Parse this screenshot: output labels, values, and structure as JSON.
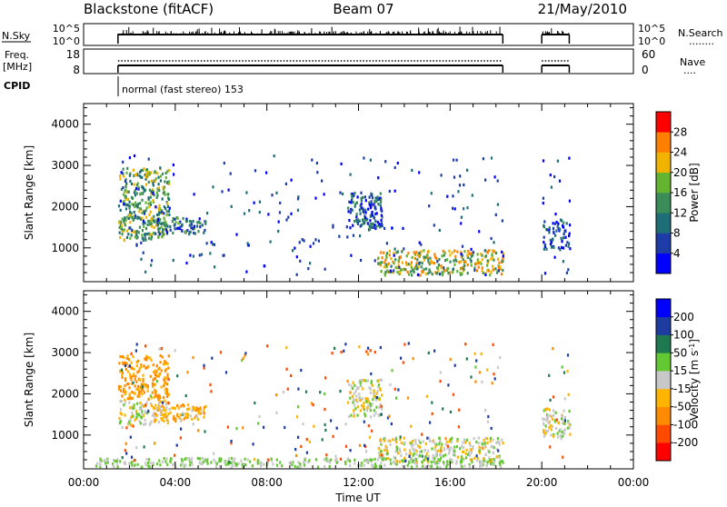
{
  "header": {
    "station": "Blackstone (fitACF)",
    "beam": "Beam 07",
    "date": "21/May/2010"
  },
  "status_panels": {
    "nsky": {
      "left_label": "N.Sky",
      "left_ticks": [
        "10^5",
        "10^0"
      ],
      "right_ticks": [
        "10^5",
        "10^0"
      ],
      "right_label": "N.Search",
      "right_label_line": "........"
    },
    "freq": {
      "left_label_1": "Freq.",
      "left_label_2": "[MHz]",
      "left_ticks": [
        "18",
        "8"
      ],
      "right_ticks": [
        "60",
        "0"
      ],
      "right_label": "Nave",
      "right_label_line": "...."
    },
    "cpid": {
      "label": "CPID",
      "text": "normal (fast stereo) 153"
    }
  },
  "chart_data": [
    {
      "type": "heatmap",
      "title": "",
      "quantity": "Power",
      "ylabel": "Slant Range [km]",
      "xlabel": "",
      "xlim": [
        0,
        24
      ],
      "ylim": [
        180,
        4500
      ],
      "yticks": [
        1000,
        2000,
        3000,
        4000
      ],
      "ytick_labels": [
        "1000",
        "2000",
        "3000",
        "4000"
      ],
      "colorbar": {
        "label": "Power [dB]",
        "range": [
          0,
          32
        ],
        "ticks": [
          4,
          8,
          12,
          16,
          20,
          24,
          28
        ],
        "tick_labels": [
          "4",
          "8",
          "12",
          "16",
          "20",
          "24",
          "28"
        ],
        "colors": [
          "#0000ff",
          "#1e3ca8",
          "#1e6e78",
          "#3c8c5a",
          "#64b432",
          "#f0b400",
          "#ff8000",
          "#ff0000"
        ]
      },
      "data_gaps_ut": [
        [
          18.3,
          20.0
        ]
      ],
      "scatter_regions": [
        {
          "ut": [
            1.5,
            3.7
          ],
          "range_km": [
            1150,
            2900
          ],
          "dominant_power_db": 16
        },
        {
          "ut": [
            3.0,
            5.3
          ],
          "range_km": [
            1300,
            1700
          ],
          "dominant_power_db": 10
        },
        {
          "ut": [
            11.5,
            13.0
          ],
          "range_km": [
            1400,
            2300
          ],
          "dominant_power_db": 8
        },
        {
          "ut": [
            12.8,
            18.3
          ],
          "range_km": [
            300,
            900
          ],
          "dominant_power_db": 20
        },
        {
          "ut": [
            20.0,
            21.2
          ],
          "range_km": [
            900,
            1600
          ],
          "dominant_power_db": 6
        }
      ]
    },
    {
      "type": "heatmap",
      "title": "",
      "quantity": "Velocity",
      "ylabel": "Slant Range [km]",
      "xlabel": "Time UT",
      "xlim": [
        0,
        24
      ],
      "ylim": [
        180,
        4500
      ],
      "yticks": [
        1000,
        2000,
        3000,
        4000
      ],
      "ytick_labels": [
        "1000",
        "2000",
        "3000",
        "4000"
      ],
      "xticks": [
        0,
        4,
        8,
        12,
        16,
        20,
        24
      ],
      "xtick_labels": [
        "00:00",
        "04:00",
        "08:00",
        "12:00",
        "16:00",
        "20:00",
        "00:00"
      ],
      "colorbar": {
        "label": "Velocity [m s^-1]",
        "ticks": [
          -200,
          -100,
          -50,
          -15,
          15,
          50,
          100,
          200
        ],
        "tick_labels": [
          "-200",
          "-100",
          "-50",
          "-15",
          "15",
          "50",
          "100",
          "200"
        ],
        "colors": [
          "#ff0000",
          "#ff4a00",
          "#ff8c00",
          "#ffb400",
          "#c8c8c8",
          "#64c832",
          "#1e7850",
          "#1e3ca0",
          "#0000ff"
        ]
      },
      "data_gaps_ut": [
        [
          18.3,
          20.0
        ]
      ],
      "scatter_regions": [
        {
          "ut": [
            1.5,
            3.7
          ],
          "range_km": [
            1800,
            2900
          ],
          "dominant_velocity_ms": -60
        },
        {
          "ut": [
            1.5,
            3.7
          ],
          "range_km": [
            1200,
            1800
          ],
          "dominant_velocity_ms": 0
        },
        {
          "ut": [
            3.0,
            5.3
          ],
          "range_km": [
            1300,
            1700
          ],
          "dominant_velocity_ms": -40
        },
        {
          "ut": [
            11.5,
            13.0
          ],
          "range_km": [
            1400,
            2300
          ],
          "dominant_velocity_ms": 0
        },
        {
          "ut": [
            12.8,
            18.3
          ],
          "range_km": [
            300,
            900
          ],
          "dominant_velocity_ms": 0
        },
        {
          "ut": [
            0.5,
            18.3
          ],
          "range_km": [
            180,
            400
          ],
          "dominant_velocity_ms": 20
        },
        {
          "ut": [
            20.0,
            21.2
          ],
          "range_km": [
            900,
            1600
          ],
          "dominant_velocity_ms": 0
        }
      ]
    }
  ]
}
